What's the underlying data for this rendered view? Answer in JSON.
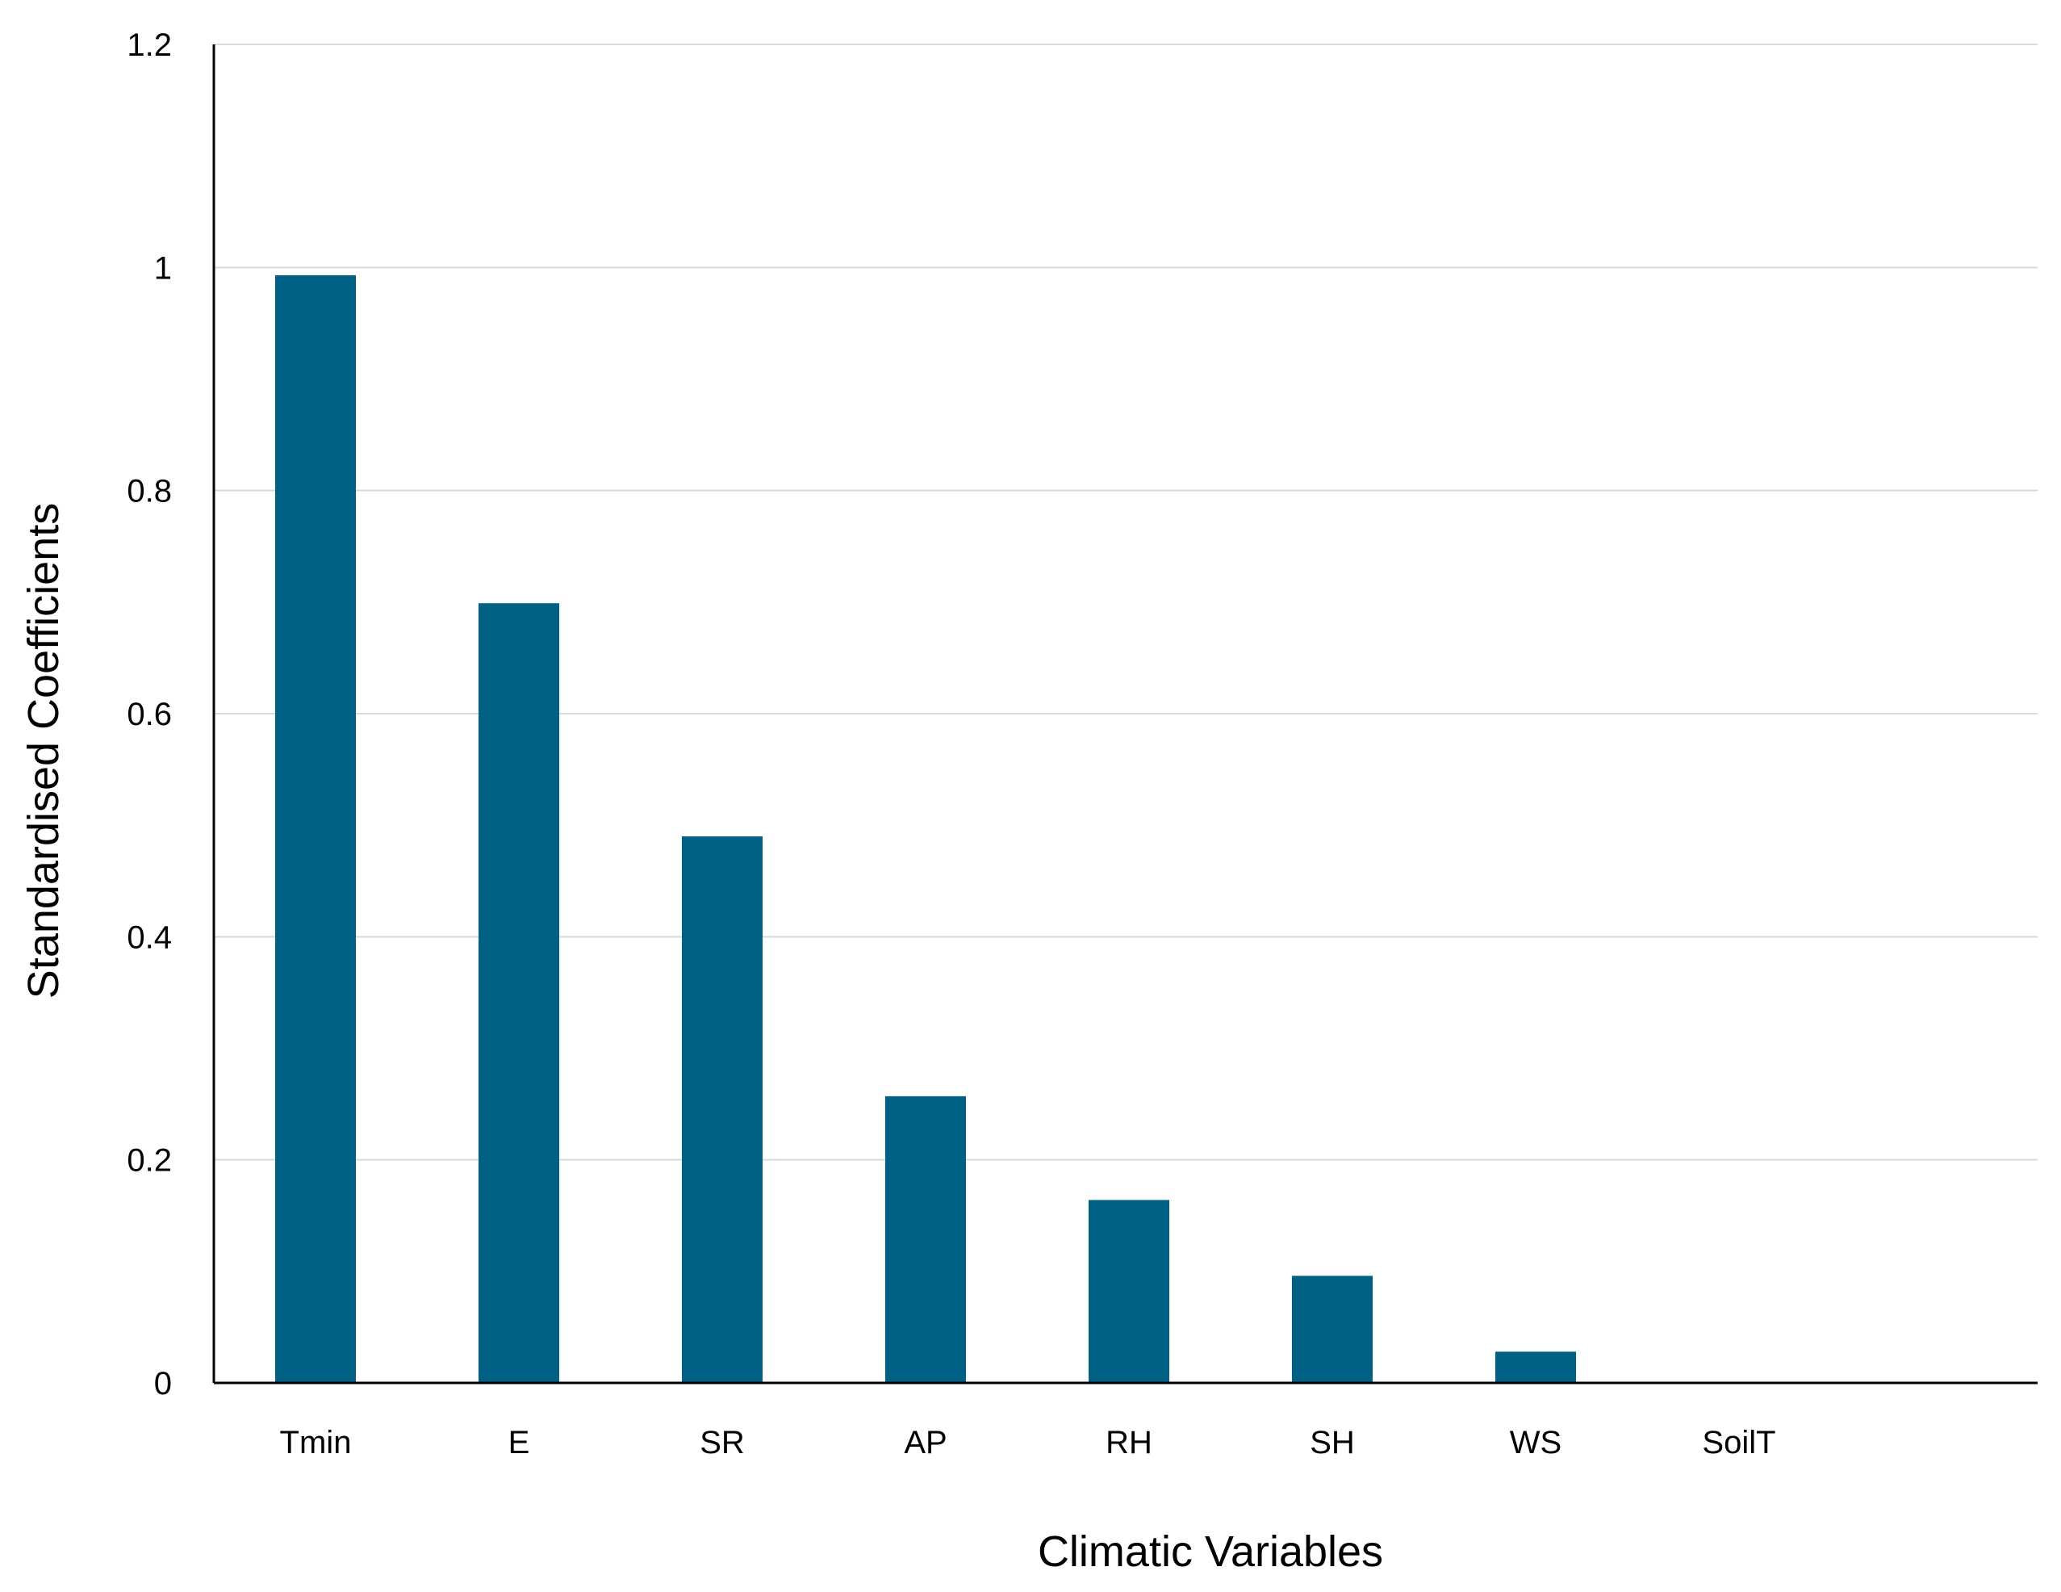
{
  "chart_data": {
    "type": "bar",
    "title": "",
    "xlabel": "Climatic Variables",
    "ylabel": "Standardised Coefficients",
    "categories": [
      "Tmin",
      "E",
      "SR",
      "AP",
      "RH",
      "SH",
      "WS",
      "SoilT"
    ],
    "values": [
      0.993,
      0.699,
      0.49,
      0.257,
      0.164,
      0.096,
      0.028,
      0.0
    ],
    "ylim": [
      0,
      1.2
    ],
    "yticks": [
      0,
      0.2,
      0.4,
      0.6,
      0.8,
      1,
      1.2
    ],
    "ytick_labels": [
      "0",
      "0.2",
      "0.4",
      "0.6",
      "0.8",
      "1",
      "1.2"
    ],
    "grid": true,
    "legend": "none",
    "colors": {
      "bar": "#006185",
      "grid": "#d9d9d9",
      "axis": "#000000"
    }
  }
}
